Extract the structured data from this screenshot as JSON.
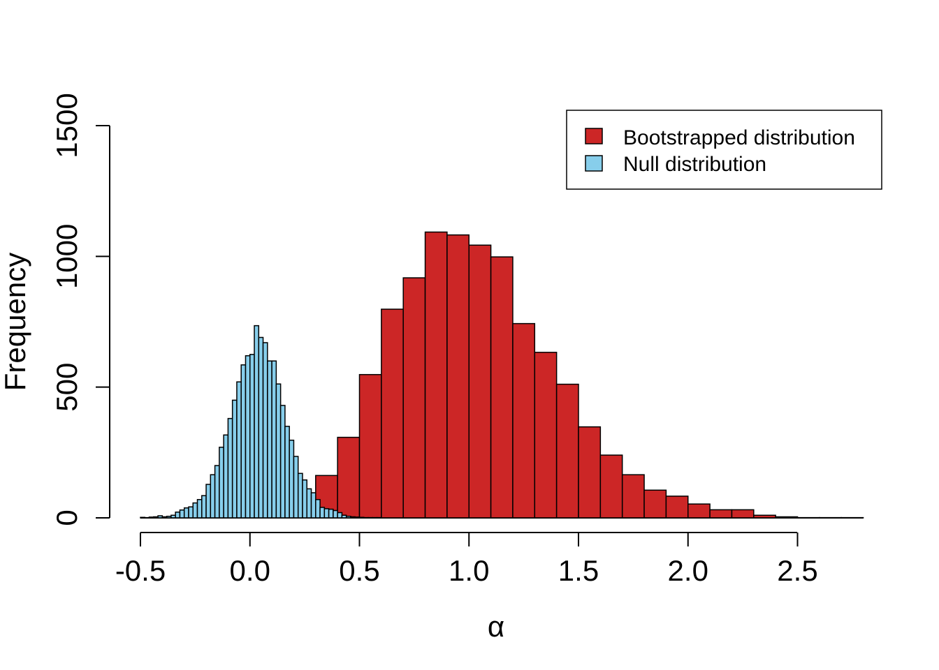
{
  "chart_data": {
    "type": "bar",
    "title": "",
    "xlabel": "α",
    "ylabel": "Frequency",
    "xlim": [
      -0.55,
      2.8
    ],
    "ylim": [
      0,
      1500
    ],
    "xticks": [
      -0.5,
      0.0,
      0.5,
      1.0,
      1.5,
      2.0,
      2.5
    ],
    "xtick_labels": [
      "-0.5",
      "0.0",
      "0.5",
      "1.0",
      "1.5",
      "2.0",
      "2.5"
    ],
    "yticks": [
      0,
      500,
      1000,
      1500
    ],
    "ytick_labels": [
      "0",
      "500",
      "1000",
      "1500"
    ],
    "legend": {
      "position": "top-right",
      "entries": [
        {
          "label": "Bootstrapped distribution",
          "color": "#cc2626"
        },
        {
          "label": "Null distribution",
          "color": "#87ceeb"
        }
      ]
    },
    "series": [
      {
        "name": "Bootstrapped distribution",
        "color": "#cc2626",
        "bin_width": 0.1,
        "bin_starts": [
          -0.5,
          -0.4,
          -0.3,
          -0.2,
          -0.1,
          0.0,
          0.1,
          0.2,
          0.3,
          0.4,
          0.5,
          0.6,
          0.7,
          0.8,
          0.9,
          1.0,
          1.1,
          1.2,
          1.3,
          1.4,
          1.5,
          1.6,
          1.7,
          1.8,
          1.9,
          2.0,
          2.1,
          2.2,
          2.3,
          2.4,
          2.5,
          2.6,
          2.7
        ],
        "values": [
          0,
          0,
          0,
          0,
          0,
          0,
          0,
          0,
          162,
          308,
          548,
          798,
          918,
          1093,
          1082,
          1043,
          998,
          743,
          633,
          511,
          348,
          240,
          165,
          106,
          83,
          53,
          31,
          31,
          10,
          4,
          1,
          1,
          1
        ]
      },
      {
        "name": "Null distribution",
        "color": "#87ceeb",
        "bin_width": 0.02,
        "bin_starts": [
          -0.5,
          -0.48,
          -0.46,
          -0.44,
          -0.42,
          -0.4,
          -0.38,
          -0.36,
          -0.34,
          -0.32,
          -0.3,
          -0.28,
          -0.26,
          -0.24,
          -0.22,
          -0.2,
          -0.18,
          -0.16,
          -0.14,
          -0.12,
          -0.1,
          -0.08,
          -0.06,
          -0.04,
          -0.02,
          0.0,
          0.02,
          0.04,
          0.06,
          0.08,
          0.1,
          0.12,
          0.14,
          0.16,
          0.18,
          0.2,
          0.22,
          0.24,
          0.26,
          0.28,
          0.3,
          0.32,
          0.34,
          0.36,
          0.38,
          0.4,
          0.42,
          0.44,
          0.46,
          0.48,
          0.5,
          0.52,
          0.54,
          0.56,
          0.58
        ],
        "values": [
          2,
          1,
          3,
          4,
          8,
          4,
          6,
          10,
          22,
          30,
          38,
          42,
          57,
          70,
          85,
          128,
          165,
          200,
          270,
          317,
          380,
          450,
          520,
          585,
          620,
          625,
          735,
          690,
          670,
          600,
          600,
          512,
          430,
          350,
          297,
          235,
          170,
          145,
          111,
          96,
          70,
          40,
          35,
          33,
          28,
          20,
          10,
          6,
          4,
          3,
          2,
          1,
          1,
          1,
          1
        ]
      }
    ]
  }
}
